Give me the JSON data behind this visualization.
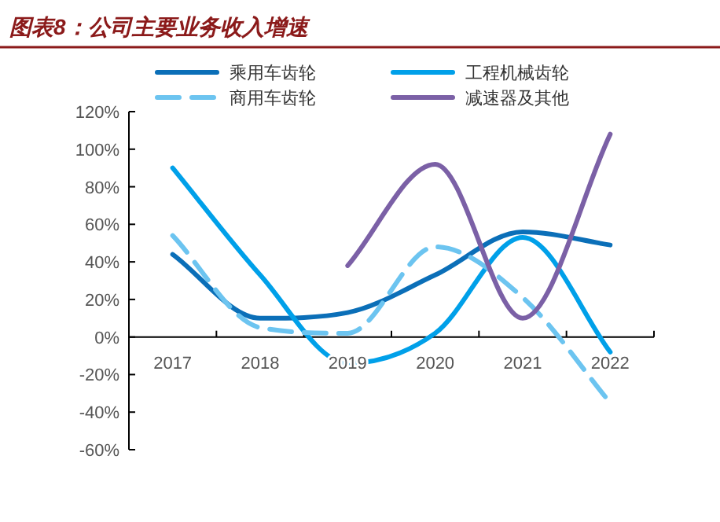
{
  "chart_data": {
    "type": "line",
    "title": "图表8：公司主要业务收入增速",
    "categories": [
      "2017",
      "2018",
      "2019",
      "2020",
      "2021",
      "2022"
    ],
    "series": [
      {
        "name": "乘用车齿轮",
        "color": "#0b6fb8",
        "values": [
          44,
          10,
          13,
          33,
          56,
          49
        ]
      },
      {
        "name": "工程机械齿轮",
        "color": "#00a0e9",
        "values": [
          90,
          33,
          -14,
          2,
          53,
          -8
        ]
      },
      {
        "name": "商用车齿轮",
        "color": "#6cc4f0",
        "values": [
          54,
          5,
          2,
          48,
          21,
          -35
        ],
        "line_style": "dashed"
      },
      {
        "name": "减速器及其他",
        "color": "#7b60a6",
        "values": [
          null,
          null,
          38,
          92,
          10,
          108
        ]
      }
    ],
    "ylim": [
      -60,
      120
    ],
    "yticks": [
      {
        "value": -60,
        "label": "-60%"
      },
      {
        "value": -40,
        "label": "-40%"
      },
      {
        "value": -20,
        "label": "-20%"
      },
      {
        "value": 0,
        "label": "0%"
      },
      {
        "value": 20,
        "label": "20%"
      },
      {
        "value": 40,
        "label": "40%"
      },
      {
        "value": 60,
        "label": "60%"
      },
      {
        "value": 80,
        "label": "80%"
      },
      {
        "value": 100,
        "label": "100%"
      },
      {
        "value": 120,
        "label": "120%"
      }
    ],
    "grid": false,
    "legend": "top",
    "marker": "none",
    "line_style": "solid"
  }
}
